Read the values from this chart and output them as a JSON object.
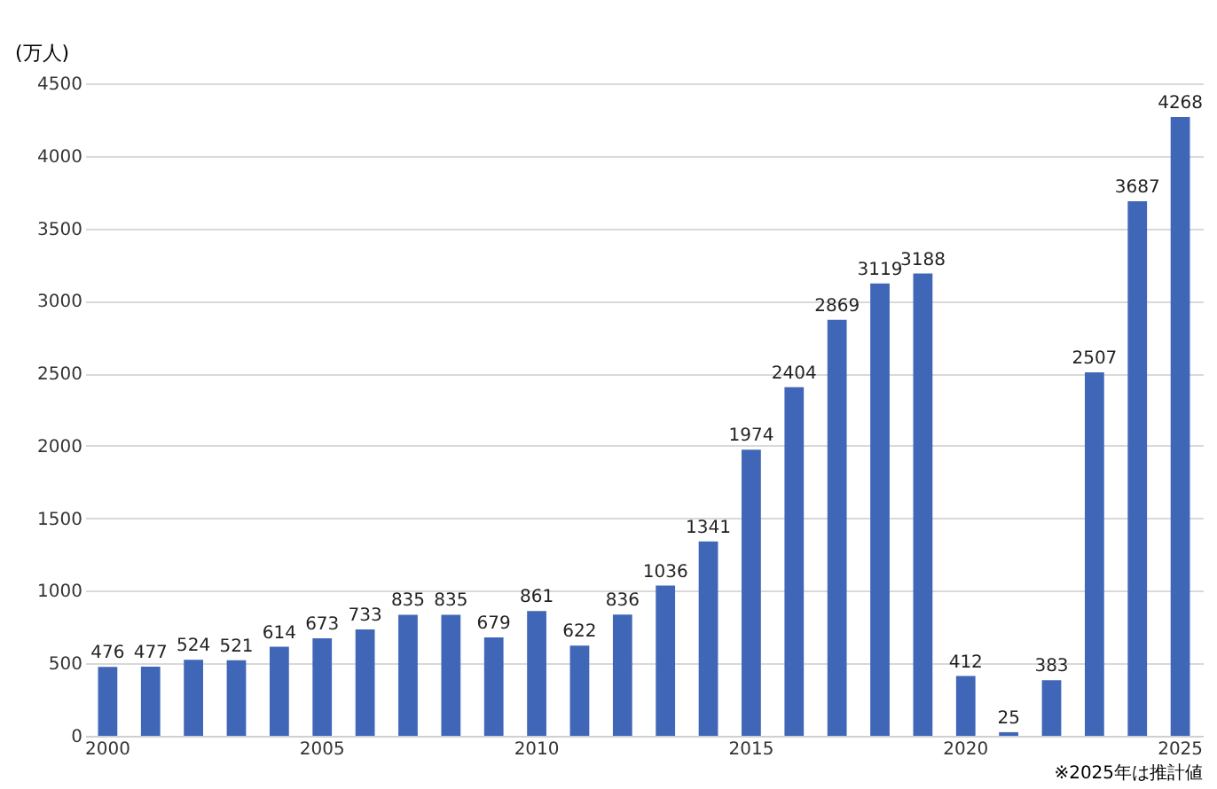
{
  "chart_data": {
    "type": "bar",
    "ylabel": "(万人)",
    "annotations": [
      "※2025年は推計値"
    ],
    "categories": [
      "2000",
      null,
      null,
      null,
      null,
      "2005",
      null,
      null,
      null,
      null,
      "2010",
      null,
      null,
      null,
      null,
      "2015",
      null,
      null,
      null,
      null,
      "2020",
      null,
      null,
      null,
      null,
      "2025"
    ],
    "values": [
      476,
      477,
      524,
      521,
      614,
      673,
      733,
      835,
      835,
      679,
      861,
      622,
      836,
      1036,
      1341,
      1974,
      2404,
      2869,
      3119,
      3188,
      412,
      25,
      383,
      2507,
      3687,
      4268
    ],
    "color": "#4066b8",
    "ylim": [
      0,
      4500
    ],
    "yticks": [
      0,
      500,
      1000,
      1500,
      2000,
      2500,
      3000,
      3500,
      4000,
      4500
    ],
    "grid": "y",
    "data_labels": true
  }
}
